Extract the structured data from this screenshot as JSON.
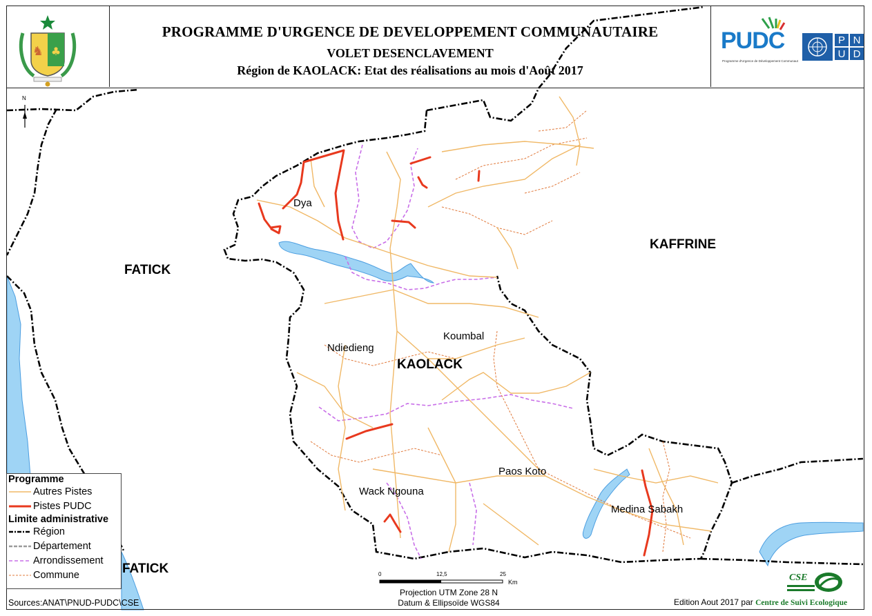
{
  "header": {
    "title": "PROGRAMME D'URGENCE DE DEVELOPPEMENT COMMUNAUTAIRE",
    "subtitle": "VOLET DESENCLAVEMENT",
    "region_line": "Région de KAOLACK: Etat des réalisations au mois d'Août 2017",
    "logo_pudc": "PUDC",
    "logo_pudc_tagline": "Programme d'Urgence de Développement Communautaire",
    "logo_pnud": [
      "P",
      "N",
      "U",
      "D"
    ]
  },
  "north_arrow": "N",
  "map_labels": {
    "fatick": "FATICK",
    "kaffrine": "KAFFRINE",
    "kaolack": "KAOLACK",
    "dya": "Dya",
    "ndiedieng": "Ndiedieng",
    "koumbal": "Koumbal",
    "paos_koto": "Paos Koto",
    "wack_ngouna": "Wack Ngouna",
    "medina_sabakh": "Medina Sabakh",
    "fatick_south": "FATICK"
  },
  "legend": {
    "group_programme": "Programme",
    "autres_pistes": "Autres Pistes",
    "pistes_pudc": "Pistes PUDC",
    "group_limite": "Limite administrative",
    "region": "Région",
    "departement": "Département",
    "arrondissement": "Arrondissement",
    "commune": "Commune"
  },
  "colors": {
    "autres_pistes": "#f0b866",
    "pistes_pudc": "#e8391e",
    "region": "#000000",
    "departement": "#9a9a9a",
    "arrondissement": "#c86ee8",
    "commune": "#e0783a",
    "water": "#9fd4f5",
    "water_edge": "#4a9de0"
  },
  "scale": {
    "ticks": [
      "0",
      "12,5",
      "25"
    ],
    "unit": "Km"
  },
  "projection": [
    "Projection UTM Zone 28 N",
    "Datum & Ellipsoïde WGS84"
  ],
  "sources": "Sources:ANAT\\PNUD-PUDC\\CSE",
  "edition": {
    "prefix": "Edition Aout 2017 par",
    "org": "Centre de Suivi Ecologique",
    "logo": "CSE"
  }
}
